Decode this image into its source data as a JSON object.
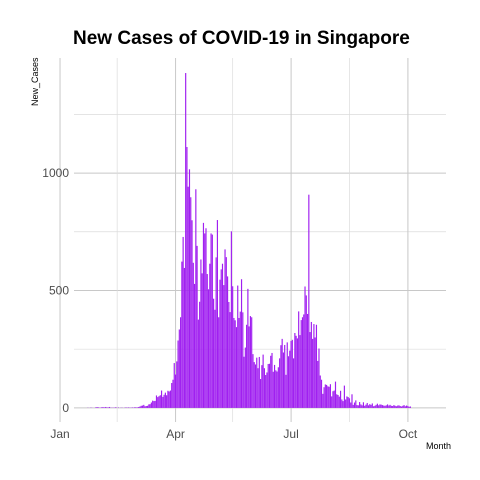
{
  "chart_data": {
    "type": "bar",
    "title": "New Cases of COVID-19 in Singapore",
    "xlabel": "Month",
    "ylabel": "New_Cases",
    "x_tick_labels": [
      "Jan",
      "Apr",
      "Jul",
      "Oct"
    ],
    "y_tick_labels": [
      "0",
      "500",
      "1000"
    ],
    "y_ticks": [
      0,
      500,
      1000
    ],
    "ylim": [
      -60,
      1490
    ],
    "x_range": [
      "2020-01-12",
      "2020-10-31"
    ],
    "grid": true,
    "legend": "none",
    "colors": {
      "bar": "#a020f0",
      "grid": "#c8c8c8"
    },
    "series": [
      {
        "start_date": "2020-01-23",
        "values": [
          1,
          0,
          1,
          1,
          0,
          0,
          2,
          3,
          3,
          1,
          1,
          3,
          3,
          2,
          4,
          2,
          2,
          4,
          1,
          1,
          1,
          1,
          3,
          0,
          2,
          0,
          1,
          1,
          0,
          1,
          2,
          1,
          2,
          1,
          1,
          2,
          1,
          3,
          2,
          2,
          4,
          6,
          9,
          10,
          13,
          7,
          8,
          9,
          15,
          16,
          23,
          31,
          29,
          30,
          53,
          46,
          50,
          54,
          74,
          47,
          56,
          65,
          54,
          73,
          70,
          74,
          106,
          120,
          191,
          142,
          198,
          287,
          334,
          386,
          623,
          728,
          596,
          1426,
          1111,
          942,
          1016,
          897,
          799,
          618,
          528,
          931,
          690,
          376,
          452,
          632,
          573,
          788,
          743,
          765,
          570,
          505,
          614,
          743,
          738,
          465,
          418,
          641,
          800,
          386,
          546,
          590,
          614,
          523,
          675,
          642,
          560,
          451,
          408,
          752,
          518,
          383,
          373,
          344,
          521,
          383,
          410,
          548,
          407,
          218,
          257,
          354,
          507,
          347,
          391,
          386,
          229,
          195,
          185,
          214,
          169,
          217,
          123,
          182,
          227,
          169,
          140,
          151,
          187,
          188,
          222,
          234,
          154,
          183,
          160,
          155,
          173,
          211,
          267,
          294,
          236,
          268,
          141,
          279,
          220,
          244,
          285,
          290,
          211,
          319,
          307,
          296,
          411,
          310,
          374,
          386,
          398,
          517,
          479,
          400,
          908,
          323,
          366,
          294,
          357,
          300,
          354,
          200,
          253,
          138,
          120,
          60,
          88,
          100,
          98,
          92,
          90,
          101,
          49,
          71,
          74,
          112,
          58,
          55,
          48,
          73,
          36,
          29,
          95,
          36,
          49,
          46,
          41,
          23,
          58,
          13,
          23,
          32,
          12,
          11,
          25,
          15,
          11,
          24,
          9,
          14,
          21,
          11,
          16,
          13,
          19,
          7,
          9,
          13,
          18,
          11,
          15,
          14,
          12,
          10,
          9,
          11,
          15,
          10,
          13,
          9,
          8,
          12,
          9,
          7,
          10,
          11,
          8,
          6,
          9,
          12,
          7,
          10,
          8,
          5,
          6
        ]
      }
    ]
  }
}
